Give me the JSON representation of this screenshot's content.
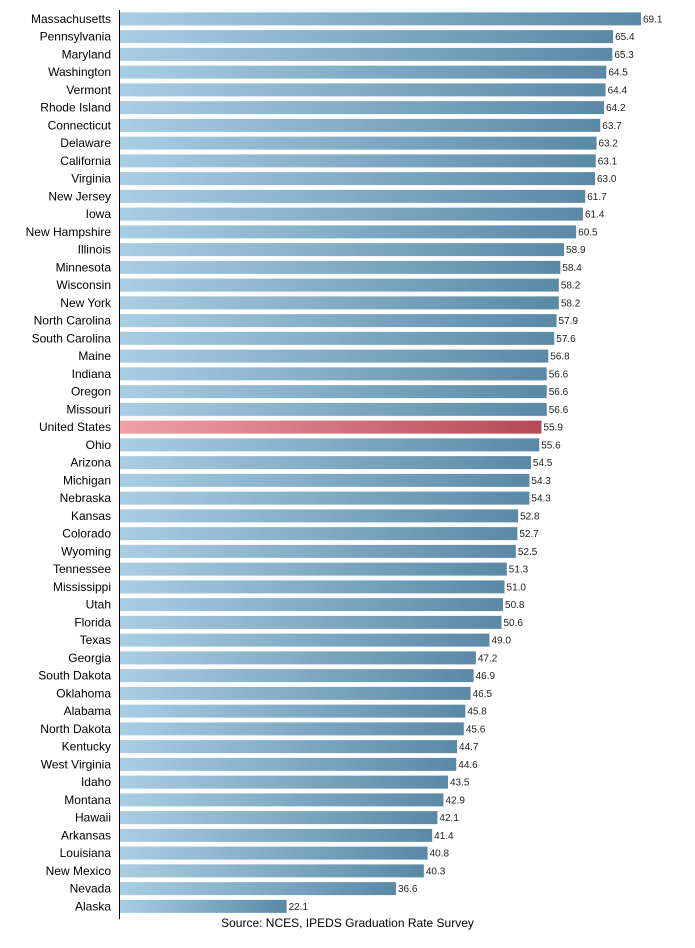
{
  "chart_data": {
    "type": "bar",
    "orientation": "horizontal",
    "categories": [
      "Massachusetts",
      "Pennsylvania",
      "Maryland",
      "Washington",
      "Vermont",
      "Rhode Island",
      "Connecticut",
      "Delaware",
      "California",
      "Virginia",
      "New Jersey",
      "Iowa",
      "New Hampshire",
      "Illinois",
      "Minnesota",
      "Wisconsin",
      "New York",
      "North Carolina",
      "South Carolina",
      "Maine",
      "Indiana",
      "Oregon",
      "Missouri",
      "United States",
      "Ohio",
      "Arizona",
      "Michigan",
      "Nebraska",
      "Kansas",
      "Colorado",
      "Wyoming",
      "Tennessee",
      "Mississippi",
      "Utah",
      "Florida",
      "Texas",
      "Georgia",
      "South Dakota",
      "Oklahoma",
      "Alabama",
      "North Dakota",
      "Kentucky",
      "West Virginia",
      "Idaho",
      "Montana",
      "Hawaii",
      "Arkansas",
      "Louisiana",
      "New Mexico",
      "Nevada",
      "Alaska"
    ],
    "values": [
      69.1,
      65.4,
      65.3,
      64.5,
      64.4,
      64.2,
      63.7,
      63.2,
      63.1,
      63.0,
      61.7,
      61.4,
      60.5,
      58.9,
      58.4,
      58.2,
      58.2,
      57.9,
      57.6,
      56.8,
      56.6,
      56.6,
      56.6,
      55.9,
      55.6,
      54.5,
      54.3,
      54.3,
      52.8,
      52.7,
      52.5,
      51.3,
      51.0,
      50.8,
      50.6,
      49.0,
      47.2,
      46.9,
      46.5,
      45.8,
      45.6,
      44.7,
      44.6,
      43.5,
      42.9,
      42.1,
      41.4,
      40.8,
      40.3,
      36.6,
      22.1
    ],
    "value_labels": [
      "69.1",
      "65.4",
      "65.3",
      "64.5",
      "64.4",
      "64.2",
      "63.7",
      "63.2",
      "63.1",
      "63.0",
      "61.7",
      "61.4",
      "60.5",
      "58.9",
      "58.4",
      "58.2",
      "58.2",
      "57.9",
      "57.6",
      "56.8",
      "56.6",
      "56.6",
      "56.6",
      "55.9",
      "55.6",
      "54.5",
      "54.3",
      "54.3",
      "52.8",
      "52.7",
      "52.5",
      "51.3",
      "51.0",
      "50.8",
      "50.6",
      "49.0",
      "47.2",
      "46.9",
      "46.5",
      "45.8",
      "45.6",
      "44.7",
      "44.6",
      "43.5",
      "42.9",
      "42.1",
      "41.4",
      "40.8",
      "40.3",
      "36.6",
      "22.1"
    ],
    "highlight": "United States",
    "colors": {
      "bar_light": "#a9cde3",
      "bar_dark": "#5a89a6",
      "highlight_light": "#f0a0a6",
      "highlight_dark": "#b44a54",
      "axis": "#000000"
    },
    "title": "",
    "xlabel": "",
    "ylabel": "",
    "xlim": [
      0,
      69.1
    ],
    "grid": false,
    "legend": "none",
    "data_labels": true
  },
  "source": "Source: NCES, IPEDS Graduation Rate Survey"
}
